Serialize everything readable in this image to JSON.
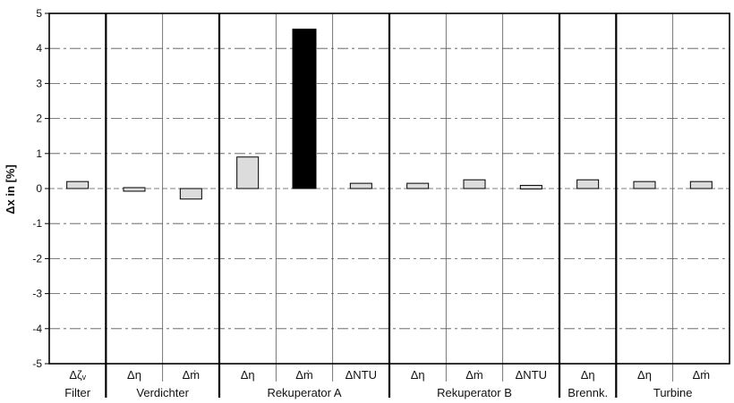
{
  "chart_data": {
    "type": "bar",
    "ylabel": "Δx in [%]",
    "ylim": [
      -5,
      5
    ],
    "yticks": [
      "-5",
      "-4",
      "-3",
      "-2",
      "-1",
      "0",
      "1",
      "2",
      "3",
      "4",
      "5"
    ],
    "grid": true,
    "categories": [
      "Δζᵥ",
      "Δη",
      "Δṁ",
      "Δη",
      "Δṁ",
      "ΔNTU",
      "Δη",
      "Δṁ",
      "ΔNTU",
      "Δη",
      "Δη",
      "Δṁ"
    ],
    "values": [
      0.2,
      -0.05,
      -0.3,
      0.9,
      4.55,
      0.15,
      0.15,
      0.25,
      0.08,
      0.25,
      0.2,
      0.2
    ],
    "bar_fill": [
      "light",
      "light",
      "light",
      "light",
      "dark",
      "light",
      "light",
      "light",
      "light",
      "light",
      "light",
      "light"
    ],
    "groups": [
      {
        "label": "Filter",
        "count": 1
      },
      {
        "label": "Verdichter",
        "count": 2
      },
      {
        "label": "Rekuperator A",
        "count": 3
      },
      {
        "label": "Rekuperator B",
        "count": 3
      },
      {
        "label": "Brennk.",
        "count": 1
      },
      {
        "label": "Turbine",
        "count": 2
      }
    ],
    "colors": {
      "light": "#dcdcdc",
      "dark": "#000000",
      "axis": "#000000",
      "grid": "#555555"
    }
  }
}
